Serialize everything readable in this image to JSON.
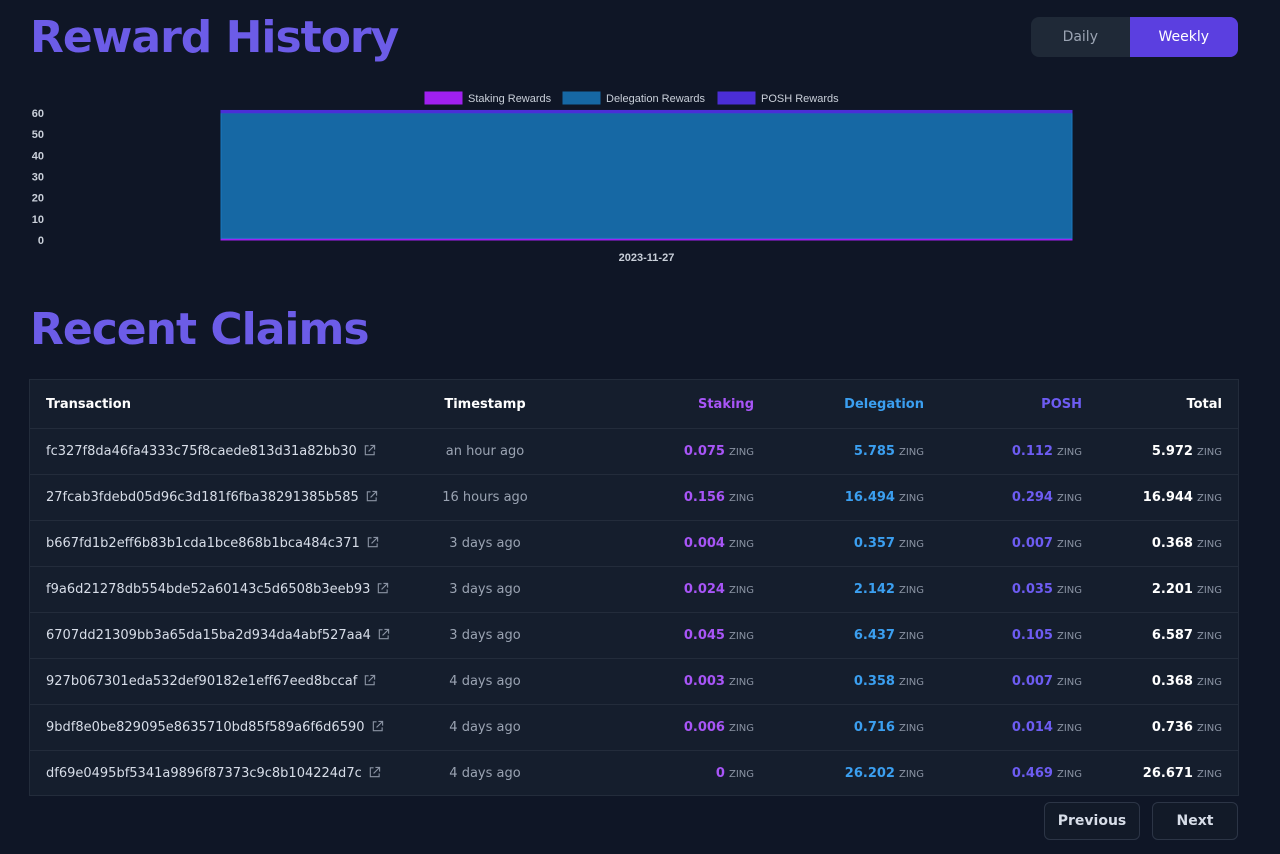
{
  "reward_history": {
    "title": "Reward History",
    "toggle": {
      "daily": "Daily",
      "weekly": "Weekly",
      "active": "weekly"
    }
  },
  "chart_data": {
    "type": "area",
    "x": [
      "2023-11-27"
    ],
    "ylim": [
      0,
      60
    ],
    "yticks": [
      0,
      10,
      20,
      30,
      40,
      50,
      60
    ],
    "legend_position": "top",
    "series": [
      {
        "name": "Staking Rewards",
        "values": [
          0.8
        ],
        "color": "#a020f0"
      },
      {
        "name": "Delegation Rewards",
        "values": [
          59.3
        ],
        "color": "#1668a4"
      },
      {
        "name": "POSH Rewards",
        "values": [
          1.1
        ],
        "color": "#4b2ed6"
      }
    ]
  },
  "recent_claims": {
    "title": "Recent Claims",
    "headers": {
      "transaction": "Transaction",
      "timestamp": "Timestamp",
      "staking": "Staking",
      "delegation": "Delegation",
      "posh": "POSH",
      "total": "Total"
    },
    "unit": "ZING",
    "rows": [
      {
        "tx": "fc327f8da46fa4333c75f8caede813d31a82bb30",
        "time": "an hour ago",
        "staking": "0.075",
        "delegation": "5.785",
        "posh": "0.112",
        "total": "5.972"
      },
      {
        "tx": "27fcab3fdebd05d96c3d181f6fba38291385b585",
        "time": "16 hours ago",
        "staking": "0.156",
        "delegation": "16.494",
        "posh": "0.294",
        "total": "16.944"
      },
      {
        "tx": "b667fd1b2eff6b83b1cda1bce868b1bca484c371",
        "time": "3 days ago",
        "staking": "0.004",
        "delegation": "0.357",
        "posh": "0.007",
        "total": "0.368"
      },
      {
        "tx": "f9a6d21278db554bde52a60143c5d6508b3eeb93",
        "time": "3 days ago",
        "staking": "0.024",
        "delegation": "2.142",
        "posh": "0.035",
        "total": "2.201"
      },
      {
        "tx": "6707dd21309bb3a65da15ba2d934da4abf527aa4",
        "time": "3 days ago",
        "staking": "0.045",
        "delegation": "6.437",
        "posh": "0.105",
        "total": "6.587"
      },
      {
        "tx": "927b067301eda532def90182e1eff67eed8bccaf",
        "time": "4 days ago",
        "staking": "0.003",
        "delegation": "0.358",
        "posh": "0.007",
        "total": "0.368"
      },
      {
        "tx": "9bdf8e0be829095e8635710bd85f589a6f6d6590",
        "time": "4 days ago",
        "staking": "0.006",
        "delegation": "0.716",
        "posh": "0.014",
        "total": "0.736"
      },
      {
        "tx": "df69e0495bf5341a9896f87373c9c8b104224d7c",
        "time": "4 days ago",
        "staking": "0",
        "delegation": "26.202",
        "posh": "0.469",
        "total": "26.671"
      }
    ]
  },
  "pagination": {
    "previous": "Previous",
    "next": "Next"
  }
}
